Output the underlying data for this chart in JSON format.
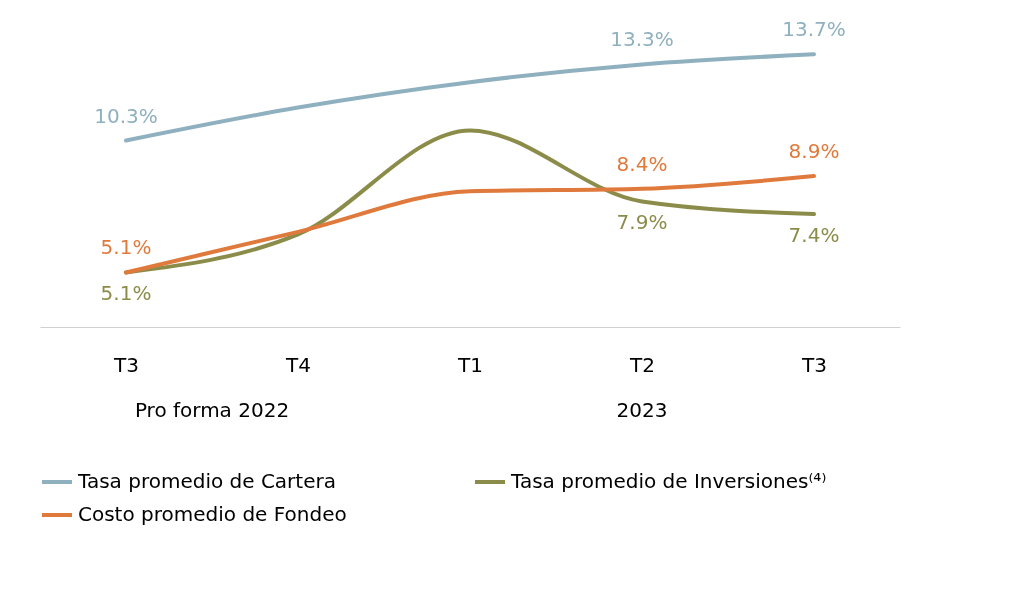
{
  "chart_data": {
    "type": "line",
    "categories": [
      "T3",
      "T4",
      "T1",
      "T2",
      "T3"
    ],
    "series": [
      {
        "name": "Tasa promedio de Cartera",
        "color": "#8fb0bf",
        "values": [
          10.3,
          11.6,
          12.6,
          13.3,
          13.7
        ],
        "value_labels": [
          "10.3%",
          null,
          null,
          "13.3%",
          "13.7%"
        ]
      },
      {
        "name": "Tasa promedio de Inversiones⁽⁴⁾",
        "color": "#8c8c4a",
        "values": [
          5.1,
          6.6,
          10.7,
          7.9,
          7.4
        ],
        "value_labels": [
          "5.1%",
          null,
          null,
          "7.9%",
          "7.4%"
        ]
      },
      {
        "name": "Costo promedio de Fondeo",
        "color": "#e07a3c",
        "values": [
          5.1,
          6.7,
          8.3,
          8.4,
          8.9
        ],
        "value_labels": [
          "5.1%",
          null,
          null,
          "8.4%",
          "8.9%"
        ]
      }
    ],
    "annotations": [
      "Pro forma 2022",
      "2023"
    ],
    "legend": "bottom",
    "grid": false,
    "marker": "none",
    "line_style": "solid",
    "tick_labels": "x"
  }
}
